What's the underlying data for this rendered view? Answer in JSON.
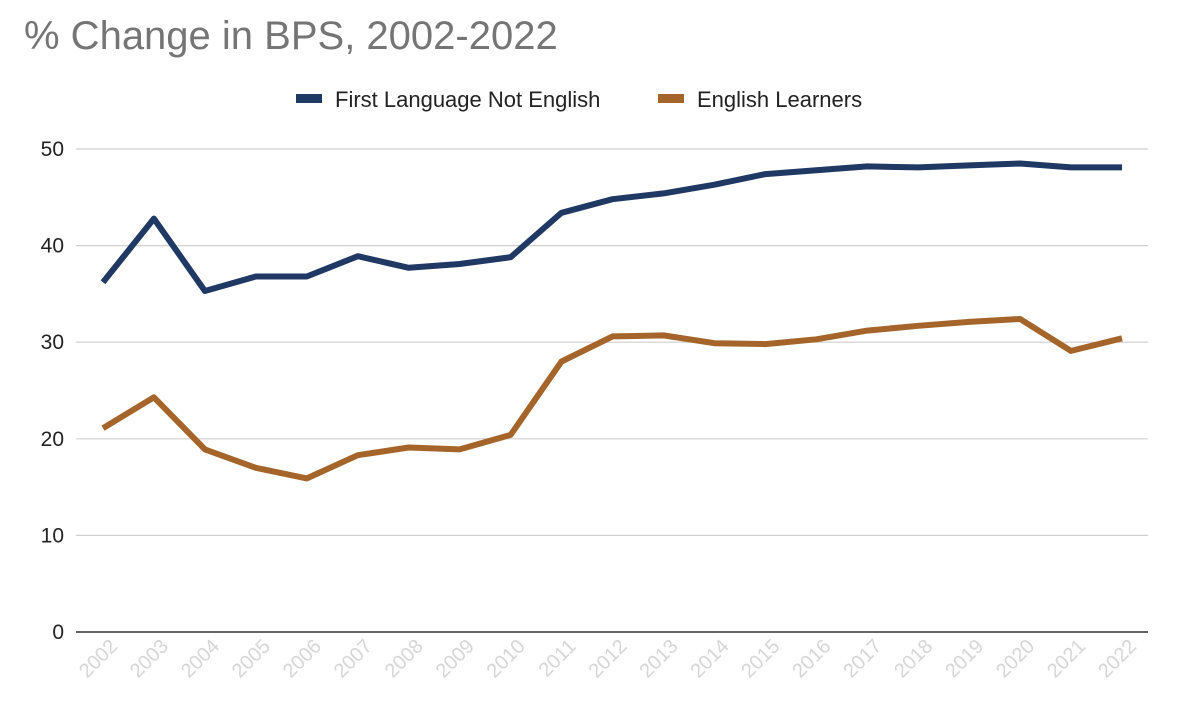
{
  "chart_data": {
    "type": "line",
    "title": "% Change in BPS, 2002-2022",
    "xlabel": "",
    "ylabel": "",
    "ylim": [
      0,
      50
    ],
    "yticks": [
      0,
      10,
      20,
      30,
      40,
      50
    ],
    "grid": true,
    "legend_position": "top-center",
    "categories": [
      "2002",
      "2003",
      "2004",
      "2005",
      "2006",
      "2007",
      "2008",
      "2009",
      "2010",
      "2011",
      "2012",
      "2013",
      "2014",
      "2015",
      "2016",
      "2017",
      "2018",
      "2019",
      "2020",
      "2021",
      "2022"
    ],
    "series": [
      {
        "name": "First Language Not English",
        "color": "#1f3864",
        "values": [
          36.2,
          42.8,
          35.3,
          36.8,
          36.8,
          38.9,
          37.7,
          38.1,
          38.8,
          43.4,
          44.8,
          45.4,
          46.3,
          47.4,
          47.8,
          48.2,
          48.1,
          48.3,
          48.5,
          48.1,
          48.1
        ]
      },
      {
        "name": "English Learners",
        "color": "#a5652a",
        "values": [
          21.1,
          24.3,
          18.9,
          17.0,
          15.9,
          18.3,
          19.1,
          18.9,
          20.4,
          28.0,
          30.6,
          30.7,
          29.9,
          29.8,
          30.3,
          31.2,
          31.7,
          32.1,
          32.4,
          29.1,
          30.4
        ]
      }
    ]
  }
}
